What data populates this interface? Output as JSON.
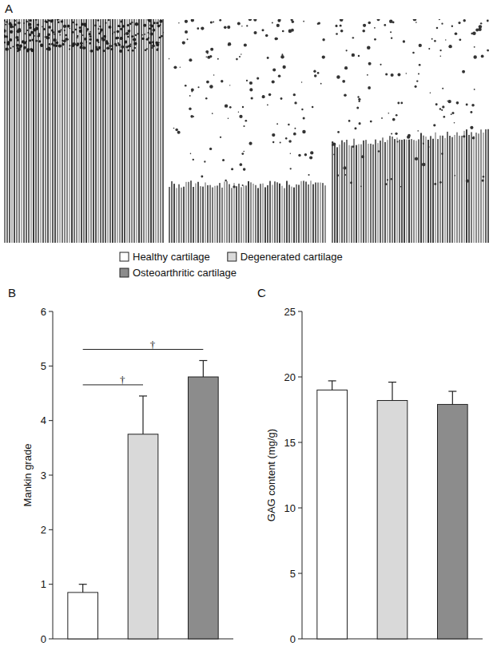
{
  "figure": {
    "panel_a_label": "A"
  },
  "chart_data": [
    {
      "label": "B",
      "type": "bar",
      "y_label": "Mankin grade",
      "categories": [
        "Healthy cartilage",
        "Degenerated cartilage",
        "Osteoarthritic cartilage"
      ],
      "values": [
        0.85,
        3.75,
        4.8
      ],
      "errors": [
        0.15,
        0.7,
        0.3
      ],
      "colors": [
        "#ffffff",
        "#d9d9d9",
        "#8c8c8c"
      ],
      "ylim": [
        0,
        6
      ],
      "yticks": [
        0,
        1,
        2,
        3,
        4,
        5,
        6
      ],
      "tick_labels": "y",
      "legend": "top",
      "annotations": [
        {
          "text": "†",
          "from": "Healthy cartilage",
          "to": "Degenerated cartilage"
        },
        {
          "text": "†",
          "from": "Healthy cartilage",
          "to": "Osteoarthritic cartilage"
        }
      ]
    },
    {
      "label": "C",
      "type": "bar",
      "y_label": "GAG content (mg/g)",
      "categories": [
        "Healthy cartilage",
        "Degenerated cartilage",
        "Osteoarthritic cartilage"
      ],
      "values": [
        19,
        18.2,
        17.9
      ],
      "errors": [
        0.7,
        1.4,
        1.0
      ],
      "colors": [
        "#ffffff",
        "#d9d9d9",
        "#8c8c8c"
      ],
      "ylim": [
        0,
        25
      ],
      "yticks": [
        0,
        5,
        10,
        15,
        20,
        25
      ],
      "tick_labels": "y"
    }
  ]
}
